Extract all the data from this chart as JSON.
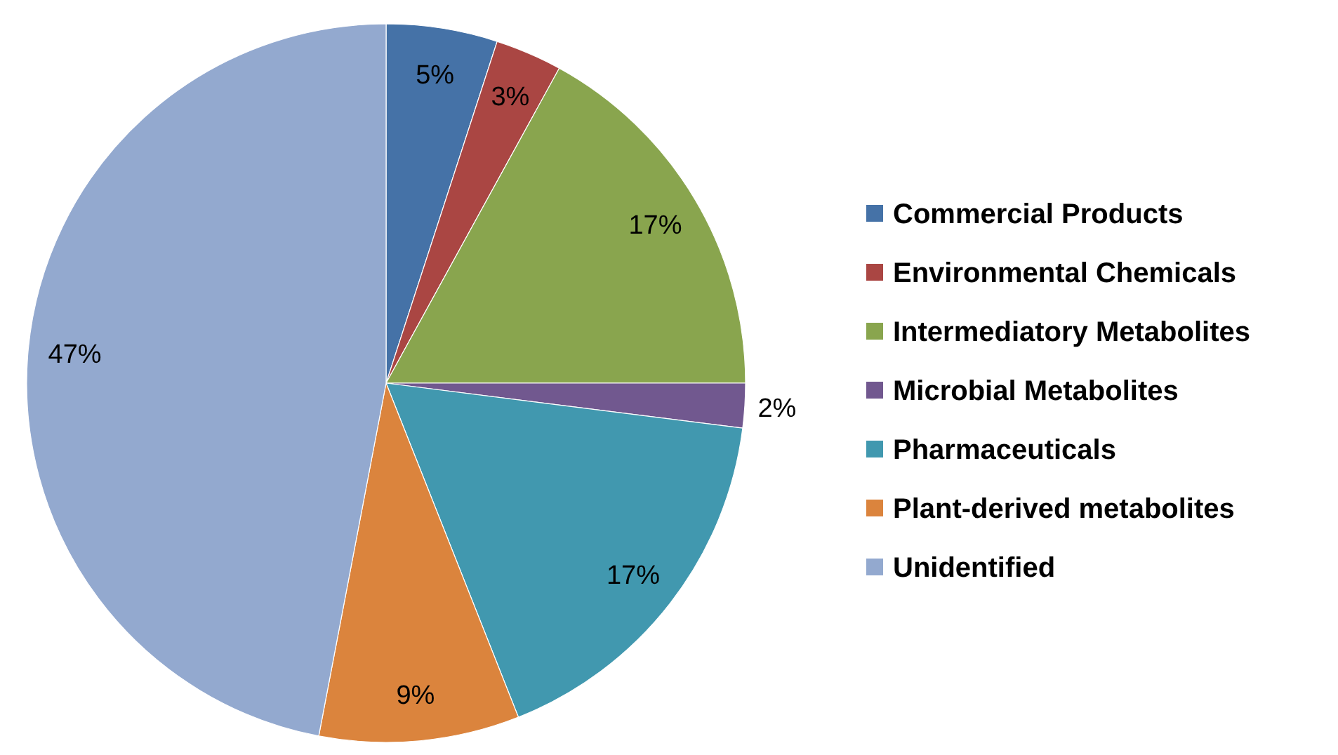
{
  "chart_data": {
    "type": "pie",
    "categories": [
      "Commercial Products",
      "Environmental Chemicals",
      "Intermediatory Metabolites",
      "Microbial Metabolites",
      "Pharmaceuticals",
      "Plant-derived metabolites",
      "Unidentified"
    ],
    "values": [
      5,
      3,
      17,
      2,
      17,
      9,
      47
    ],
    "colors": [
      "#4572a7",
      "#aa4643",
      "#89a54e",
      "#71588f",
      "#4198af",
      "#db843d",
      "#93a9cf"
    ],
    "value_labels": [
      "5%",
      "3%",
      "17%",
      "2%",
      "17%",
      "9%",
      "47%"
    ],
    "legend": "right"
  }
}
